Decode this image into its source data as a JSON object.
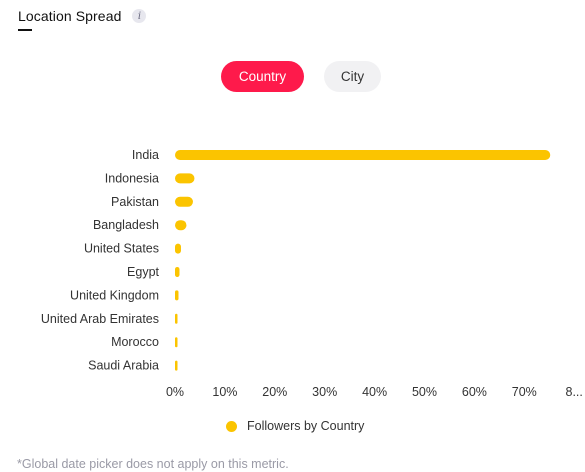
{
  "header": {
    "title": "Location Spread",
    "info_icon": "info-icon"
  },
  "toggles": {
    "country": "Country",
    "city": "City",
    "selected": "Country"
  },
  "colors": {
    "accent": "#fe1a4b",
    "bar": "#fbc400"
  },
  "chart_data": {
    "type": "bar",
    "orientation": "horizontal",
    "categories": [
      "India",
      "Indonesia",
      "Pakistan",
      "Bangladesh",
      "United States",
      "Egypt",
      "United Kingdom",
      "United Arab Emirates",
      "Morocco",
      "Saudi Arabia"
    ],
    "series": [
      {
        "name": "Followers by Country",
        "values": [
          75.2,
          3.9,
          3.6,
          2.3,
          1.2,
          0.9,
          0.7,
          0.5,
          0.4,
          0.4
        ]
      }
    ],
    "x_ticks": [
      "0%",
      "10%",
      "20%",
      "30%",
      "40%",
      "50%",
      "60%",
      "70%",
      "8..."
    ],
    "xlim": [
      0,
      80
    ],
    "grid": false,
    "legend_position": "bottom"
  },
  "legend": {
    "label": "Followers by Country"
  },
  "footnote": "*Global date picker does not apply on this metric."
}
